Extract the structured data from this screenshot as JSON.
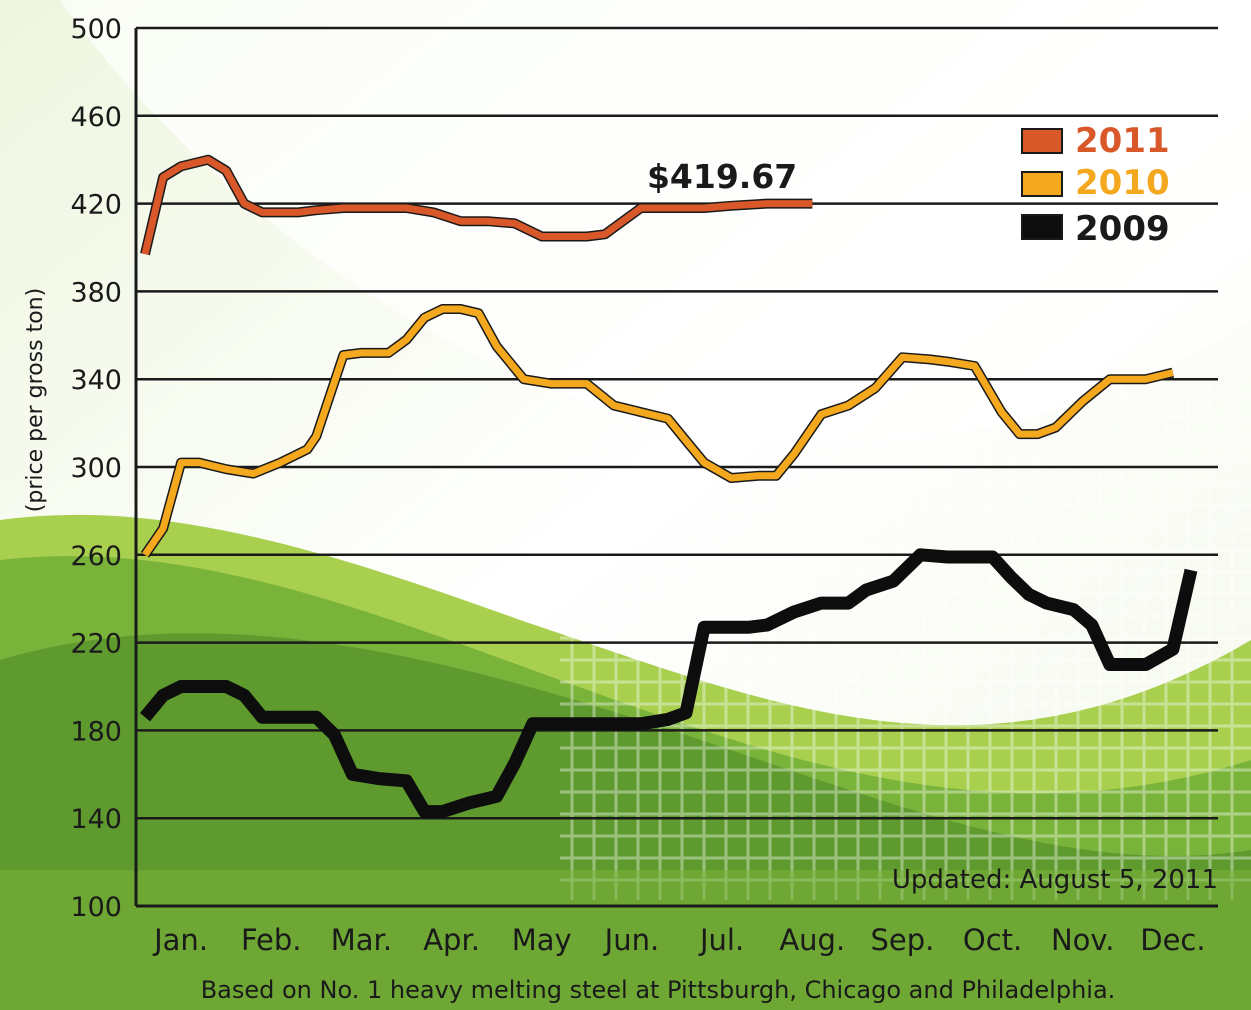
{
  "chart_data": {
    "type": "line",
    "ylabel": "(price per gross ton)",
    "ylim": [
      100,
      500
    ],
    "yticks": [
      100,
      140,
      180,
      220,
      260,
      300,
      340,
      380,
      420,
      460,
      500
    ],
    "categories": [
      "Jan.",
      "Feb.",
      "Mar.",
      "Apr.",
      "May",
      "Jun.",
      "Jul.",
      "Aug.",
      "Sep.",
      "Oct.",
      "Nov.",
      "Dec."
    ],
    "grid": true,
    "legend": "top-right",
    "series": [
      {
        "name": "2011",
        "color": "#d8582a",
        "x": [
          0.1,
          0.3,
          0.5,
          0.8,
          1.0,
          1.2,
          1.4,
          1.8,
          2.0,
          2.3,
          2.5,
          2.8,
          3.0,
          3.3,
          3.6,
          3.9,
          4.2,
          4.5,
          4.8,
          5.0,
          5.2,
          5.6,
          6.0,
          6.3,
          6.6,
          7.0,
          7.5
        ],
        "y": [
          397,
          432,
          437,
          440,
          435,
          420,
          416,
          416,
          417,
          418,
          418,
          418,
          418,
          416,
          412,
          412,
          411,
          405,
          405,
          405,
          406,
          418,
          418,
          418,
          419,
          420,
          420
        ]
      },
      {
        "name": "2010",
        "color": "#f4a81e",
        "x": [
          0.1,
          0.3,
          0.5,
          0.7,
          1.0,
          1.3,
          1.6,
          1.9,
          2.0,
          2.3,
          2.5,
          2.8,
          3.0,
          3.2,
          3.4,
          3.6,
          3.8,
          4.0,
          4.3,
          4.6,
          4.8,
          5.0,
          5.3,
          5.6,
          5.9,
          6.1,
          6.3,
          6.6,
          6.9,
          7.1,
          7.3,
          7.6,
          7.9,
          8.2,
          8.5,
          8.8,
          9.0,
          9.3,
          9.6,
          9.8,
          10.0,
          10.2,
          10.5,
          10.8,
          11.0,
          11.2,
          11.5
        ],
        "y": [
          260,
          272,
          302,
          302,
          299,
          297,
          302,
          308,
          314,
          351,
          352,
          352,
          358,
          368,
          372,
          372,
          370,
          355,
          340,
          338,
          338,
          338,
          328,
          325,
          322,
          312,
          302,
          295,
          296,
          296,
          306,
          324,
          328,
          336,
          350,
          349,
          348,
          346,
          325,
          315,
          315,
          318,
          330,
          340,
          340,
          340,
          343
        ]
      },
      {
        "name": "2009",
        "color": "#0d0d0d",
        "x": [
          0.1,
          0.3,
          0.5,
          0.8,
          1.0,
          1.2,
          1.4,
          1.7,
          2.0,
          2.2,
          2.4,
          2.7,
          3.0,
          3.2,
          3.4,
          3.7,
          4.0,
          4.2,
          4.4,
          4.6,
          4.9,
          5.1,
          5.4,
          5.6,
          5.9,
          6.1,
          6.3,
          6.6,
          6.8,
          7.0,
          7.3,
          7.6,
          7.9,
          8.1,
          8.4,
          8.7,
          9.0,
          9.2,
          9.5,
          9.7,
          9.9,
          10.1,
          10.4,
          10.6,
          10.8,
          11.0,
          11.2,
          11.5,
          11.7
        ],
        "y": [
          186,
          196,
          200,
          200,
          200,
          196,
          186,
          186,
          186,
          178,
          160,
          158,
          157,
          143,
          143,
          147,
          150,
          165,
          183,
          183,
          183,
          183,
          183,
          183,
          185,
          188,
          227,
          227,
          227,
          228,
          234,
          238,
          238,
          244,
          248,
          260,
          259,
          259,
          259,
          250,
          242,
          238,
          235,
          228,
          210,
          210,
          210,
          217,
          253
        ]
      }
    ],
    "annotations": [
      {
        "text": "$419.67",
        "x": 6.5,
        "y": 427
      }
    ],
    "note": "Updated: August 5, 2011",
    "footnote": "Based on No. 1 heavy melting steel at Pittsburgh, Chicago and Philadelphia."
  },
  "colors": {
    "background_green_dark": "#5f9a2e",
    "background_green_mid": "#7ab33a",
    "background_green_light": "#a8cf4e",
    "gridline": "#1a1a1a"
  }
}
